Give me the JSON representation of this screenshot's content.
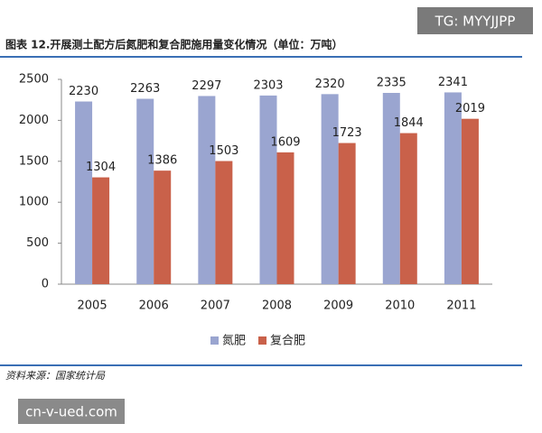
{
  "chart_data": {
    "type": "bar",
    "title": "图表 12.开展测土配方后氮肥和复合肥施用量变化情况（单位：万吨）",
    "categories": [
      "2005",
      "2006",
      "2007",
      "2008",
      "2009",
      "2010",
      "2011"
    ],
    "series": [
      {
        "name": "氮肥",
        "color": "#9aa5d0",
        "values": [
          2230,
          2263,
          2297,
          2303,
          2320,
          2335,
          2341
        ]
      },
      {
        "name": "复合肥",
        "color": "#c9614a",
        "values": [
          1304,
          1386,
          1503,
          1609,
          1723,
          1844,
          2019
        ]
      }
    ],
    "ylim": [
      0,
      2500
    ],
    "yticks": [
      0,
      500,
      1000,
      1500,
      2000,
      2500
    ],
    "grid": false,
    "legend": "bottom",
    "data_labels": true
  },
  "source": "资料来源：国家统计局",
  "watermarks": [
    "TG: MYYJJPP",
    "cn-v-ued.com"
  ]
}
